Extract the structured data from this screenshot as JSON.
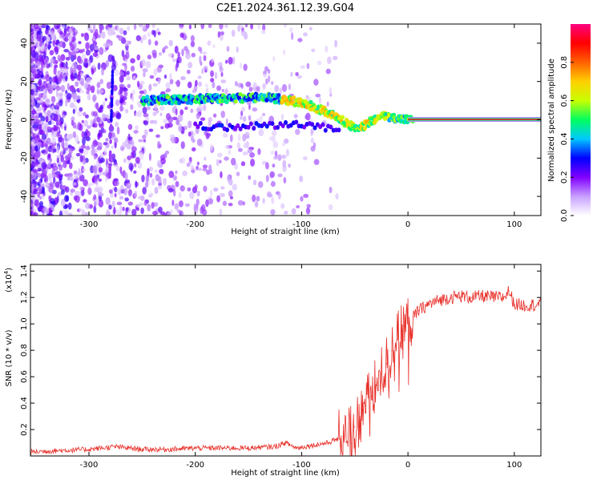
{
  "title": "C2E1.2024.361.12.39.G04",
  "chart_data": [
    {
      "type": "heatmap",
      "xlabel": "Height of straight line (km)",
      "ylabel": "Frequency (Hz)",
      "xlim": [
        -355,
        125
      ],
      "ylim": [
        -50,
        50
      ],
      "x_ticks": [
        -300,
        -200,
        -100,
        0,
        100
      ],
      "x_tick_labels": [
        "-300",
        "-200",
        "-100",
        "0",
        "100"
      ],
      "y_ticks": [
        -40,
        -20,
        0,
        20,
        40
      ],
      "y_tick_labels": [
        "-40",
        "-20",
        "0",
        "20",
        "40"
      ],
      "colorbar": {
        "label": "Normalized spectral amplitude",
        "range": [
          0,
          1
        ],
        "ticks": [
          0.0,
          0.2,
          0.4,
          0.6,
          0.8
        ],
        "tick_labels": [
          "0.0",
          "0.2",
          "0.4",
          "0.6",
          "0.8"
        ],
        "colors": [
          "#ffffff",
          "#c8a0ff",
          "#8000ff",
          "#0000ff",
          "#00c8ff",
          "#00ff60",
          "#c8ff00",
          "#ffd000",
          "#ff6000",
          "#ff0000",
          "#ff0080"
        ]
      },
      "ridge": {
        "name": "",
        "x": [
          -250,
          -230,
          -210,
          -190,
          -170,
          -150,
          -130,
          -110,
          -95,
          -80,
          -65,
          -55,
          -45,
          -35,
          -25,
          -15,
          -5,
          5,
          20,
          40,
          60,
          80,
          95,
          110,
          125
        ],
        "y": [
          10,
          10.5,
          10.5,
          11,
          11,
          11.5,
          11.5,
          10,
          8,
          5,
          1,
          -3,
          -4,
          -1,
          2,
          1,
          0.5,
          0.3,
          0.2,
          0.2,
          0.2,
          0.2,
          0.2,
          0.2,
          0.2
        ]
      },
      "lower_branch": {
        "x": [
          -200,
          -180,
          -160,
          -140,
          -120,
          -100,
          -80,
          -65
        ],
        "y": [
          -3,
          -4,
          -4,
          -3,
          -3,
          -2,
          -4,
          -6
        ]
      },
      "steady_tone": {
        "x_start": 0,
        "x_end": 125,
        "y": 0.2
      }
    },
    {
      "type": "line",
      "xlabel": "Height of straight line (km)",
      "ylabel": "SNR (10 * v/v)",
      "y_exponent_label": "(x10",
      "y_exponent_power": "4",
      "y_exponent_close": ")",
      "xlim": [
        -355,
        125
      ],
      "ylim": [
        0,
        1.45
      ],
      "x_ticks": [
        -300,
        -200,
        -100,
        0,
        100
      ],
      "x_tick_labels": [
        "-300",
        "-200",
        "-100",
        "0",
        "100"
      ],
      "y_ticks": [
        0.2,
        0.4,
        0.6,
        0.8,
        1.0,
        1.2,
        1.4
      ],
      "y_tick_labels": [
        "0.2",
        "0.4",
        "0.6",
        "0.8",
        "1.0",
        "1.2",
        "1.4"
      ],
      "color": "#e8302a",
      "series": [
        {
          "x": [
            -355,
            -330,
            -300,
            -275,
            -250,
            -225,
            -200,
            -175,
            -150,
            -125,
            -115,
            -105,
            -90,
            -75,
            -60,
            -50,
            -45,
            -40,
            -35,
            -30,
            -25,
            -20,
            -15,
            -10,
            -5,
            0,
            5,
            10,
            20,
            30,
            40,
            50,
            60,
            70,
            80,
            90,
            95,
            100,
            110,
            125
          ],
          "y": [
            0.03,
            0.04,
            0.05,
            0.07,
            0.05,
            0.05,
            0.06,
            0.06,
            0.06,
            0.07,
            0.1,
            0.06,
            0.08,
            0.1,
            0.15,
            0.22,
            0.3,
            0.38,
            0.45,
            0.52,
            0.62,
            0.7,
            0.8,
            0.88,
            0.95,
            1.0,
            1.05,
            1.1,
            1.15,
            1.18,
            1.2,
            1.21,
            1.2,
            1.21,
            1.2,
            1.2,
            1.25,
            1.15,
            1.14,
            1.15
          ]
        }
      ]
    }
  ]
}
